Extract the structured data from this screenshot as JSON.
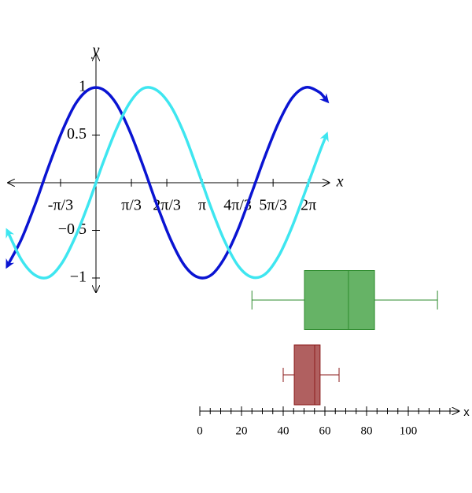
{
  "chart_data": [
    {
      "type": "line",
      "xlabel": "x",
      "ylabel": "y",
      "x": [
        -2.6,
        -2.2,
        -1.8,
        -1.4,
        -1.0,
        -0.6,
        -0.2,
        0.2,
        0.6,
        1.0,
        1.4,
        1.8,
        2.2,
        2.6,
        3.0,
        3.4,
        3.8,
        4.2,
        4.6,
        5.0,
        5.4,
        5.8,
        6.2,
        6.6,
        6.8
      ],
      "series": [
        {
          "color": "#0a14d2",
          "values": [
            -0.86,
            -0.59,
            -0.23,
            0.17,
            0.54,
            0.83,
            0.98,
            0.98,
            0.83,
            0.54,
            0.17,
            -0.23,
            -0.59,
            -0.86,
            -0.99,
            -0.97,
            -0.79,
            -0.49,
            -0.11,
            0.28,
            0.63,
            0.89,
            1.0,
            0.95,
            0.87
          ]
        },
        {
          "color": "#3ee6f0",
          "values": [
            -0.52,
            -0.81,
            -0.97,
            -0.99,
            -0.84,
            -0.56,
            -0.2,
            0.2,
            0.56,
            0.84,
            0.99,
            0.97,
            0.81,
            0.52,
            0.14,
            -0.26,
            -0.61,
            -0.87,
            -0.99,
            -0.96,
            -0.77,
            -0.46,
            -0.08,
            0.31,
            0.49
          ]
        }
      ],
      "xlim": [
        -2.6,
        6.9
      ],
      "ylim": [
        -1.15,
        1.35
      ],
      "xticks": [
        {
          "value": -1.0472,
          "label": "-π/3"
        },
        {
          "value": 1.0472,
          "label": "π/3"
        },
        {
          "value": 2.0944,
          "label": "2π/3"
        },
        {
          "value": 3.1416,
          "label": "π"
        },
        {
          "value": 4.1888,
          "label": "4π/3"
        },
        {
          "value": 5.236,
          "label": "5π/3"
        },
        {
          "value": 6.2832,
          "label": "2π"
        }
      ],
      "yticks": [
        {
          "value": -1,
          "label": "−1"
        },
        {
          "value": -0.5,
          "label": "−0.5"
        },
        0.5,
        1
      ]
    },
    {
      "type": "box",
      "xlabel": "x",
      "boxes": [
        {
          "min": 25,
          "q1": 50.2,
          "median": 71.3,
          "q3": 83.8,
          "max": 114,
          "color": "#66b366",
          "edge": "#2e8b2e"
        },
        {
          "min": 40,
          "q1": 45.3,
          "median": 55.1,
          "q3": 57.7,
          "max": 66.8,
          "color": "#b06060",
          "edge": "#8b1a1a"
        }
      ],
      "xlim": [
        0,
        122
      ],
      "xticks": [
        0,
        20,
        40,
        60,
        80,
        100
      ]
    }
  ]
}
